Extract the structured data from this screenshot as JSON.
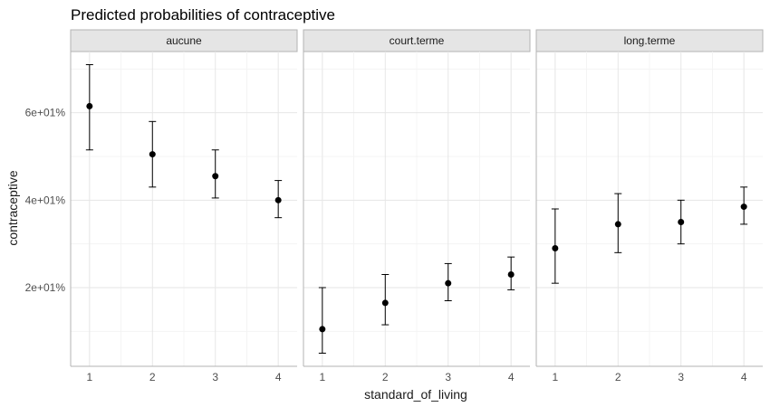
{
  "chart_data": {
    "type": "scatter",
    "title": "Predicted probabilities of contraceptive",
    "xlabel": "standard_of_living",
    "ylabel": "contraceptive",
    "x": [
      1,
      2,
      3,
      4
    ],
    "xlim": [
      0.7,
      4.3
    ],
    "ylim": [
      2,
      74
    ],
    "yticks": [
      20,
      40,
      60
    ],
    "ytick_labels": [
      "2e+01%",
      "4e+01%",
      "6e+01%"
    ],
    "grid": true,
    "panels": [
      {
        "label": "aucune",
        "points": [
          {
            "x": 1,
            "y": 61.5,
            "low": 51.5,
            "high": 71.0
          },
          {
            "x": 2,
            "y": 50.5,
            "low": 43.0,
            "high": 58.0
          },
          {
            "x": 3,
            "y": 45.5,
            "low": 40.5,
            "high": 51.5
          },
          {
            "x": 4,
            "y": 40.0,
            "low": 36.0,
            "high": 44.5
          }
        ]
      },
      {
        "label": "court.terme",
        "points": [
          {
            "x": 1,
            "y": 10.5,
            "low": 5.0,
            "high": 20.0
          },
          {
            "x": 2,
            "y": 16.5,
            "low": 11.5,
            "high": 23.0
          },
          {
            "x": 3,
            "y": 21.0,
            "low": 17.0,
            "high": 25.5
          },
          {
            "x": 4,
            "y": 23.0,
            "low": 19.5,
            "high": 27.0
          }
        ]
      },
      {
        "label": "long.terme",
        "points": [
          {
            "x": 1,
            "y": 29.0,
            "low": 21.0,
            "high": 38.0
          },
          {
            "x": 2,
            "y": 34.5,
            "low": 28.0,
            "high": 41.5
          },
          {
            "x": 3,
            "y": 35.0,
            "low": 30.0,
            "high": 40.0
          },
          {
            "x": 4,
            "y": 38.5,
            "low": 34.5,
            "high": 43.0
          }
        ]
      }
    ]
  }
}
